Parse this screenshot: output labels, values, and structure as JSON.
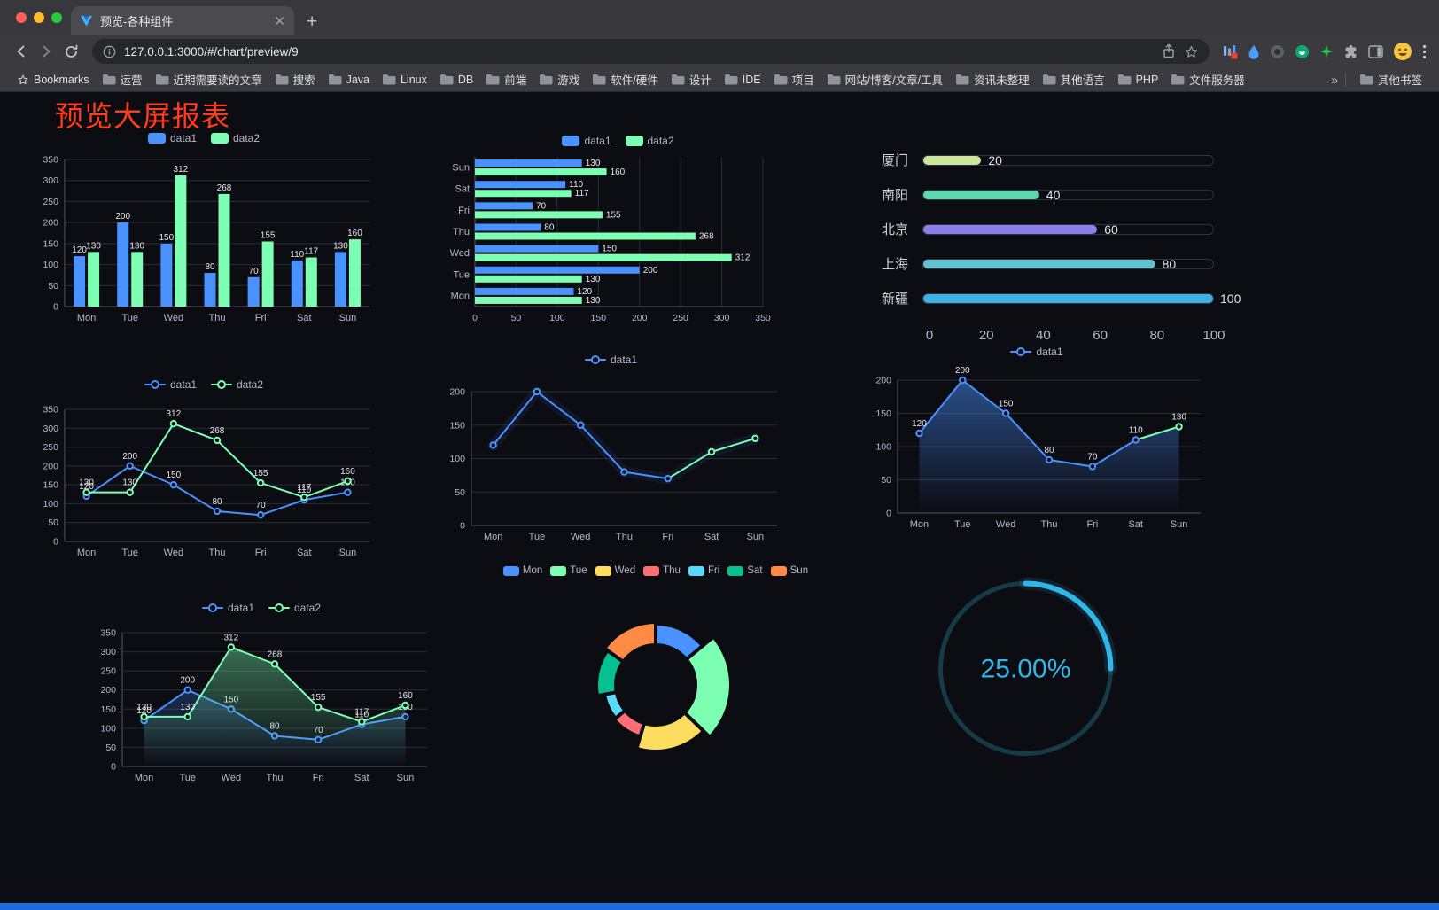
{
  "browser": {
    "tab": {
      "title": "预览-各种组件"
    },
    "url": "127.0.0.1:3000/#/chart/preview/9",
    "bookmarks_bar": {
      "label": "Bookmarks",
      "items": [
        "运营",
        "近期需要读的文章",
        "搜索",
        "Java",
        "Linux",
        "DB",
        "前端",
        "游戏",
        "软件/硬件",
        "设计",
        "IDE",
        "项目",
        "网站/博客/文章/工具",
        "资讯未整理",
        "其他语言",
        "PHP",
        "文件服务器"
      ],
      "overflow_indicator": "»",
      "other_bookmarks": "其他书签"
    }
  },
  "page": {
    "title": "预览大屏报表",
    "title_color": "#ff3b1e",
    "background": "#0c0c13"
  },
  "palette": {
    "series_blue": "#4992ff",
    "series_green": "#7cffb2",
    "axis_text": "#b9b8ce",
    "grid_line": "#2b2b35",
    "gauge_accent": "#30b6e8"
  },
  "chart_data": [
    {
      "id": "grouped-bar",
      "type": "bar",
      "categories": [
        "Mon",
        "Tue",
        "Wed",
        "Thu",
        "Fri",
        "Sat",
        "Sun"
      ],
      "series": [
        {
          "name": "data1",
          "color": "#4992ff",
          "values": [
            120,
            200,
            150,
            80,
            70,
            110,
            130
          ],
          "labels": true
        },
        {
          "name": "data2",
          "color": "#7cffb2",
          "values": [
            130,
            130,
            312,
            268,
            155,
            117,
            160
          ],
          "labels": true
        }
      ],
      "ylim": [
        0,
        350
      ],
      "ytick": 50,
      "legend_position": "top",
      "grid": true
    },
    {
      "id": "horizontal-bar",
      "type": "bar",
      "orientation": "horizontal",
      "categories": [
        "Mon",
        "Tue",
        "Wed",
        "Thu",
        "Fri",
        "Sat",
        "Sun"
      ],
      "series": [
        {
          "name": "data1",
          "color": "#4992ff",
          "values": [
            120,
            200,
            150,
            80,
            70,
            110,
            130
          ],
          "labels": true
        },
        {
          "name": "data2",
          "color": "#7cffb2",
          "values": [
            130,
            130,
            312,
            268,
            155,
            117,
            160
          ],
          "labels": true
        }
      ],
      "xlim": [
        0,
        350
      ],
      "xtick": 50,
      "legend_position": "top",
      "grid": true
    },
    {
      "id": "progress-list",
      "type": "bar",
      "subtype": "progress",
      "items": [
        {
          "label": "厦门",
          "value": 20,
          "color": "#cbe79c"
        },
        {
          "label": "南阳",
          "value": 40,
          "color": "#5fd6ab"
        },
        {
          "label": "北京",
          "value": 60,
          "color": "#8a7fe8"
        },
        {
          "label": "上海",
          "value": 80,
          "color": "#62c0cf"
        },
        {
          "label": "新疆",
          "value": 100,
          "color": "#3bb2e3"
        }
      ],
      "xlim": [
        0,
        100
      ],
      "xticks": [
        0,
        20,
        40,
        60,
        80,
        100
      ]
    },
    {
      "id": "line-two-series",
      "type": "line",
      "categories": [
        "Mon",
        "Tue",
        "Wed",
        "Thu",
        "Fri",
        "Sat",
        "Sun"
      ],
      "series": [
        {
          "name": "data1",
          "color": "#4992ff",
          "values": [
            120,
            200,
            150,
            80,
            70,
            110,
            130
          ],
          "labels": true
        },
        {
          "name": "data2",
          "color": "#7cffb2",
          "values": [
            130,
            130,
            312,
            268,
            155,
            117,
            160
          ],
          "labels": true
        }
      ],
      "ylim": [
        0,
        350
      ],
      "ytick": 50,
      "legend_position": "top",
      "grid": true
    },
    {
      "id": "line-single",
      "type": "line",
      "categories": [
        "Mon",
        "Tue",
        "Wed",
        "Thu",
        "Fri",
        "Sat",
        "Sun"
      ],
      "series": [
        {
          "name": "data1",
          "color": "#4992ff",
          "values": [
            120,
            200,
            150,
            80,
            70,
            110,
            130
          ],
          "labels": false,
          "tail_color": "#7cffb2",
          "tail_from": 4
        }
      ],
      "ylim": [
        0,
        200
      ],
      "ytick": 50,
      "glow": true,
      "legend_position": "top",
      "grid": true
    },
    {
      "id": "area-single",
      "type": "area",
      "categories": [
        "Mon",
        "Tue",
        "Wed",
        "Thu",
        "Fri",
        "Sat",
        "Sun"
      ],
      "series": [
        {
          "name": "data1",
          "color": "#4992ff",
          "values": [
            120,
            200,
            150,
            80,
            70,
            110,
            130
          ],
          "labels": true,
          "area_opacity": 0.5,
          "tail_color": "#7cffb2",
          "tail_from": 5
        }
      ],
      "ylim": [
        0,
        200
      ],
      "ytick": 50,
      "legend_position": "top",
      "grid": true
    },
    {
      "id": "line-area-two-series",
      "type": "area",
      "categories": [
        "Mon",
        "Tue",
        "Wed",
        "Thu",
        "Fri",
        "Sat",
        "Sun"
      ],
      "series": [
        {
          "name": "data1",
          "color": "#4992ff",
          "values": [
            120,
            200,
            150,
            80,
            70,
            110,
            130
          ],
          "labels": true,
          "area_opacity": 0.25
        },
        {
          "name": "data2",
          "color": "#7cffb2",
          "values": [
            130,
            130,
            312,
            268,
            155,
            117,
            160
          ],
          "labels": true,
          "area_opacity": 0.4
        }
      ],
      "ylim": [
        0,
        350
      ],
      "ytick": 50,
      "legend_position": "top",
      "grid": true
    },
    {
      "id": "rose-pie",
      "type": "pie",
      "style": "rose-doughnut",
      "categories": [
        "Mon",
        "Tue",
        "Wed",
        "Thu",
        "Fri",
        "Sat",
        "Sun"
      ],
      "values": [
        120,
        200,
        150,
        80,
        70,
        110,
        130
      ],
      "colors": [
        "#4992ff",
        "#7cffb2",
        "#fddd60",
        "#ff6e76",
        "#58d9f9",
        "#05c091",
        "#ff8a45"
      ],
      "legend_position": "top"
    },
    {
      "id": "gauge-progress",
      "type": "gauge",
      "value": 25,
      "max": 100,
      "label": "25.00%",
      "color": "#30b6e8",
      "track_color": "#173a47"
    }
  ]
}
